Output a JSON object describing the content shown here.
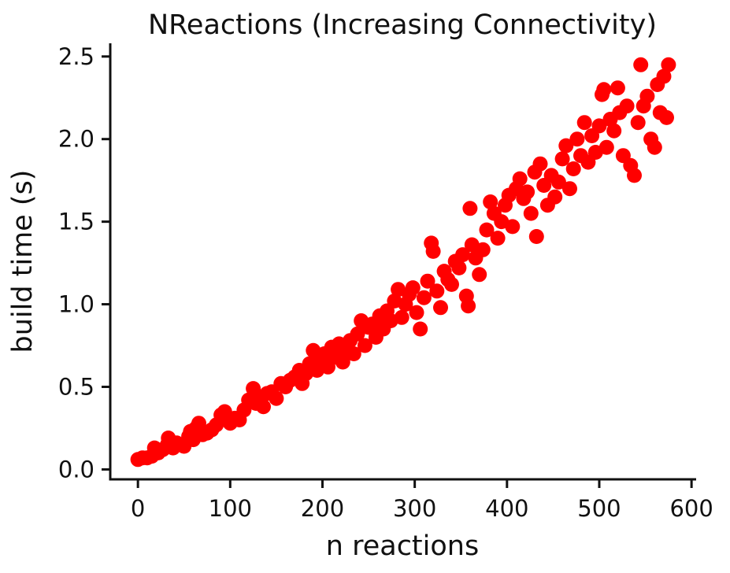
{
  "chart_data": {
    "type": "scatter",
    "title": "NReactions (Increasing Connectivity)",
    "xlabel": "n reactions",
    "ylabel": "build time (s)",
    "xlim": [
      -30,
      605
    ],
    "ylim": [
      -0.06,
      2.58
    ],
    "xticks": [
      0,
      100,
      200,
      300,
      400,
      500,
      600
    ],
    "yticks": [
      0.0,
      0.5,
      1.0,
      1.5,
      2.0,
      2.5
    ],
    "xtick_labels": [
      "0",
      "100",
      "200",
      "300",
      "400",
      "500",
      "600"
    ],
    "ytick_labels": [
      "0.0",
      "0.5",
      "1.0",
      "1.5",
      "2.0",
      "2.5"
    ],
    "grid": false,
    "legend": "none",
    "marker_color": "#ff0000",
    "series": [
      {
        "values": [
          [
            0,
            0.06
          ],
          [
            5,
            0.07
          ],
          [
            10,
            0.07
          ],
          [
            15,
            0.08
          ],
          [
            18,
            0.13
          ],
          [
            22,
            0.1
          ],
          [
            27,
            0.12
          ],
          [
            32,
            0.15
          ],
          [
            33,
            0.19
          ],
          [
            38,
            0.13
          ],
          [
            42,
            0.16
          ],
          [
            46,
            0.15
          ],
          [
            50,
            0.14
          ],
          [
            55,
            0.2
          ],
          [
            57,
            0.23
          ],
          [
            60,
            0.18
          ],
          [
            63,
            0.25
          ],
          [
            66,
            0.28
          ],
          [
            70,
            0.21
          ],
          [
            75,
            0.22
          ],
          [
            80,
            0.24
          ],
          [
            85,
            0.27
          ],
          [
            90,
            0.33
          ],
          [
            94,
            0.35
          ],
          [
            97,
            0.3
          ],
          [
            100,
            0.28
          ],
          [
            105,
            0.31
          ],
          [
            110,
            0.3
          ],
          [
            115,
            0.36
          ],
          [
            120,
            0.42
          ],
          [
            125,
            0.49
          ],
          [
            128,
            0.4
          ],
          [
            132,
            0.44
          ],
          [
            136,
            0.38
          ],
          [
            140,
            0.46
          ],
          [
            145,
            0.47
          ],
          [
            150,
            0.43
          ],
          [
            155,
            0.52
          ],
          [
            160,
            0.5
          ],
          [
            165,
            0.54
          ],
          [
            170,
            0.56
          ],
          [
            175,
            0.6
          ],
          [
            178,
            0.52
          ],
          [
            182,
            0.58
          ],
          [
            186,
            0.64
          ],
          [
            190,
            0.72
          ],
          [
            194,
            0.6
          ],
          [
            198,
            0.66
          ],
          [
            202,
            0.7
          ],
          [
            206,
            0.62
          ],
          [
            210,
            0.74
          ],
          [
            214,
            0.68
          ],
          [
            218,
            0.76
          ],
          [
            222,
            0.65
          ],
          [
            226,
            0.71
          ],
          [
            230,
            0.78
          ],
          [
            234,
            0.7
          ],
          [
            238,
            0.82
          ],
          [
            242,
            0.9
          ],
          [
            246,
            0.75
          ],
          [
            250,
            0.86
          ],
          [
            254,
            0.88
          ],
          [
            258,
            0.8
          ],
          [
            262,
            0.93
          ],
          [
            266,
            0.85
          ],
          [
            270,
            0.96
          ],
          [
            274,
            0.9
          ],
          [
            278,
            1.02
          ],
          [
            282,
            1.09
          ],
          [
            286,
            0.92
          ],
          [
            290,
            1.0
          ],
          [
            294,
            1.06
          ],
          [
            298,
            1.1
          ],
          [
            302,
            0.95
          ],
          [
            306,
            0.85
          ],
          [
            310,
            1.04
          ],
          [
            314,
            1.14
          ],
          [
            318,
            1.37
          ],
          [
            320,
            1.32
          ],
          [
            324,
            1.08
          ],
          [
            328,
            0.98
          ],
          [
            332,
            1.2
          ],
          [
            336,
            1.15
          ],
          [
            340,
            1.12
          ],
          [
            344,
            1.26
          ],
          [
            348,
            1.22
          ],
          [
            352,
            1.3
          ],
          [
            356,
            1.05
          ],
          [
            358,
            0.99
          ],
          [
            360,
            1.58
          ],
          [
            362,
            1.36
          ],
          [
            366,
            1.28
          ],
          [
            370,
            1.18
          ],
          [
            374,
            1.33
          ],
          [
            378,
            1.45
          ],
          [
            382,
            1.62
          ],
          [
            386,
            1.55
          ],
          [
            390,
            1.4
          ],
          [
            394,
            1.5
          ],
          [
            398,
            1.6
          ],
          [
            402,
            1.66
          ],
          [
            406,
            1.47
          ],
          [
            410,
            1.7
          ],
          [
            414,
            1.76
          ],
          [
            418,
            1.64
          ],
          [
            422,
            1.68
          ],
          [
            426,
            1.55
          ],
          [
            430,
            1.8
          ],
          [
            432,
            1.41
          ],
          [
            436,
            1.85
          ],
          [
            440,
            1.72
          ],
          [
            444,
            1.6
          ],
          [
            448,
            1.78
          ],
          [
            452,
            1.65
          ],
          [
            456,
            1.74
          ],
          [
            460,
            1.88
          ],
          [
            464,
            1.96
          ],
          [
            468,
            1.7
          ],
          [
            472,
            1.82
          ],
          [
            476,
            2.0
          ],
          [
            480,
            1.9
          ],
          [
            484,
            2.1
          ],
          [
            488,
            1.86
          ],
          [
            492,
            2.02
          ],
          [
            496,
            1.92
          ],
          [
            500,
            2.08
          ],
          [
            503,
            2.27
          ],
          [
            505,
            2.3
          ],
          [
            508,
            1.95
          ],
          [
            512,
            2.12
          ],
          [
            516,
            2.05
          ],
          [
            520,
            2.31
          ],
          [
            522,
            2.16
          ],
          [
            526,
            1.9
          ],
          [
            530,
            2.2
          ],
          [
            534,
            1.84
          ],
          [
            538,
            1.78
          ],
          [
            542,
            2.1
          ],
          [
            545,
            2.45
          ],
          [
            548,
            2.2
          ],
          [
            552,
            2.26
          ],
          [
            556,
            2.0
          ],
          [
            560,
            1.95
          ],
          [
            563,
            2.33
          ],
          [
            566,
            2.16
          ],
          [
            570,
            2.38
          ],
          [
            573,
            2.13
          ],
          [
            575,
            2.45
          ]
        ]
      }
    ]
  }
}
